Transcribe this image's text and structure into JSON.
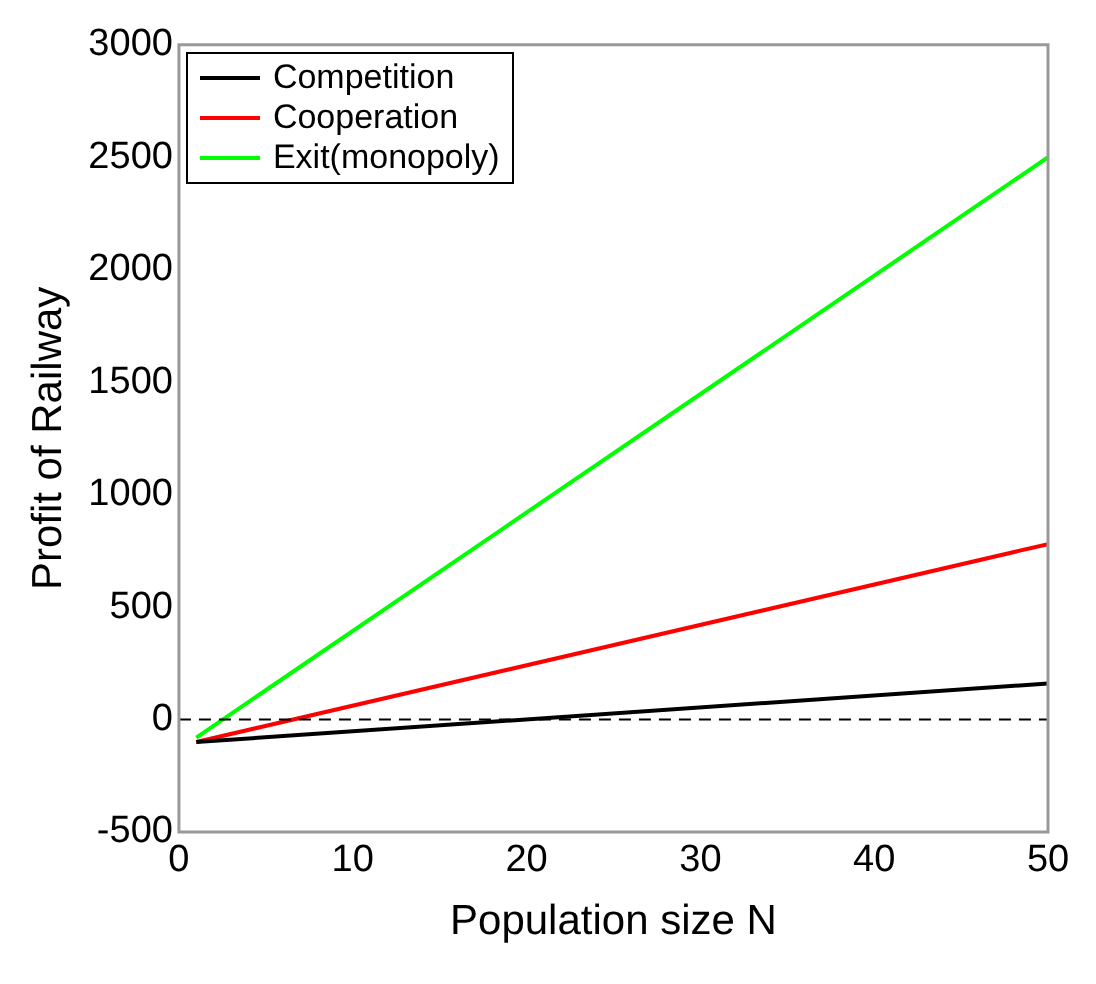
{
  "chart_data": {
    "type": "line",
    "xlabel": "Population size N",
    "ylabel": "Profit of Railway",
    "series": [
      {
        "name": "Competition",
        "color": "#000000",
        "values": [
          -100,
          160
        ]
      },
      {
        "name": "Cooperation",
        "color": "#ff0000",
        "values": [
          -100,
          780
        ]
      },
      {
        "name": "Exit(monopoly)",
        "color": "#00ff00",
        "values": [
          -80,
          2500
        ]
      }
    ],
    "x": [
      1,
      50
    ],
    "xlim": [
      0,
      50
    ],
    "xticks": [
      0,
      10,
      20,
      30,
      40,
      50
    ],
    "ylim": [
      -500,
      3000
    ],
    "yticks": [
      -500,
      0,
      500,
      1000,
      1500,
      2000,
      2500,
      3000
    ],
    "ref_lines": [
      {
        "axis": "y",
        "value": 0,
        "color": "#000000",
        "line_style": "dashed"
      }
    ],
    "grid": false,
    "legend": "top left",
    "marker": "none",
    "line_style": "solid"
  }
}
